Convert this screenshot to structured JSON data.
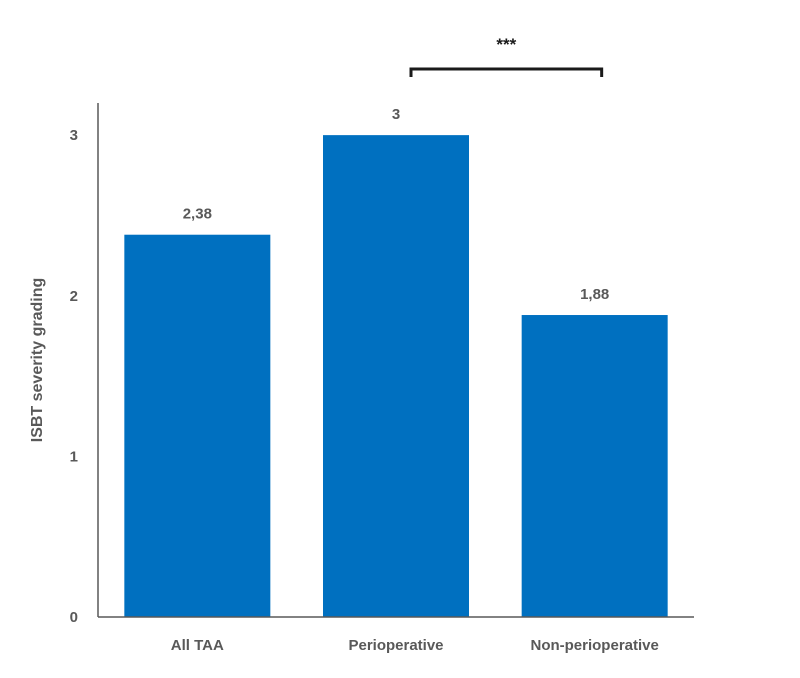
{
  "chart_data": {
    "type": "bar",
    "categories": [
      "All TAA",
      "Perioperative",
      "Non-perioperative"
    ],
    "values": [
      2.38,
      3,
      1.88
    ],
    "data_labels": [
      "2,38",
      "3",
      "1,88"
    ],
    "title": "",
    "xlabel": "",
    "ylabel": "ISBT severity grading",
    "ylim": [
      0,
      3.2
    ],
    "yticks": [
      0,
      1,
      2,
      3
    ],
    "grid": false,
    "bar_color": "#0070C0",
    "significance": {
      "from_category": "Perioperative",
      "to_category": "Non-perioperative",
      "label": "***"
    }
  }
}
